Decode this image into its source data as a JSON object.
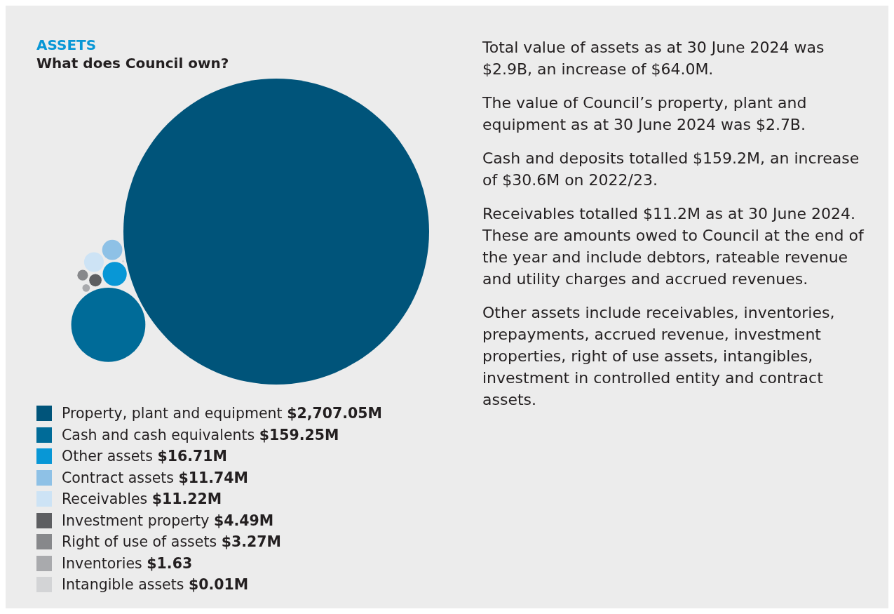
{
  "chart_data": {
    "type": "other",
    "title": "ASSETS",
    "subtitle": "What does Council own?",
    "categories": [
      "Property, plant and equipment",
      "Cash and cash equivalents",
      "Other assets",
      "Contract assets",
      "Receivables",
      "Investment property",
      "Right of use of assets",
      "Inventories",
      "Intangible assets"
    ],
    "values": [
      2707.05,
      159.25,
      16.71,
      11.74,
      11.22,
      4.49,
      3.27,
      1.63,
      0.01
    ],
    "value_labels": [
      "$2,707.05M",
      "$159.25M",
      "$16.71M",
      "$11.74M",
      "$11.22M",
      "$4.49M",
      "$3.27M",
      "$1.63",
      "$0.01M"
    ],
    "colors": [
      "#00547a",
      "#006b98",
      "#0897d6",
      "#8ec1e6",
      "#cde3f5",
      "#5d5e61",
      "#87888b",
      "#a9aaad",
      "#d3d4d6"
    ],
    "annotations": [
      "Total value of assets as at 30 June 2024 was $2.9B, an increase of $64.0M.",
      "The value of Council’s property, plant and equipment as at 30 June 2024 was $2.7B.",
      "Cash and deposits totalled $159.2M, an increase of $30.6M on 2022/23.",
      "Receivables totalled $11.2M as at 30 June 2024. These are amounts owed to Council at the end of the year and include debtors, rateable revenue and utility charges and accrued revenues.",
      "Other assets include receivables, inventories, prepayments, accrued revenue, investment properties, right of use assets, intangibles, investment in controlled entity and contract assets."
    ]
  }
}
